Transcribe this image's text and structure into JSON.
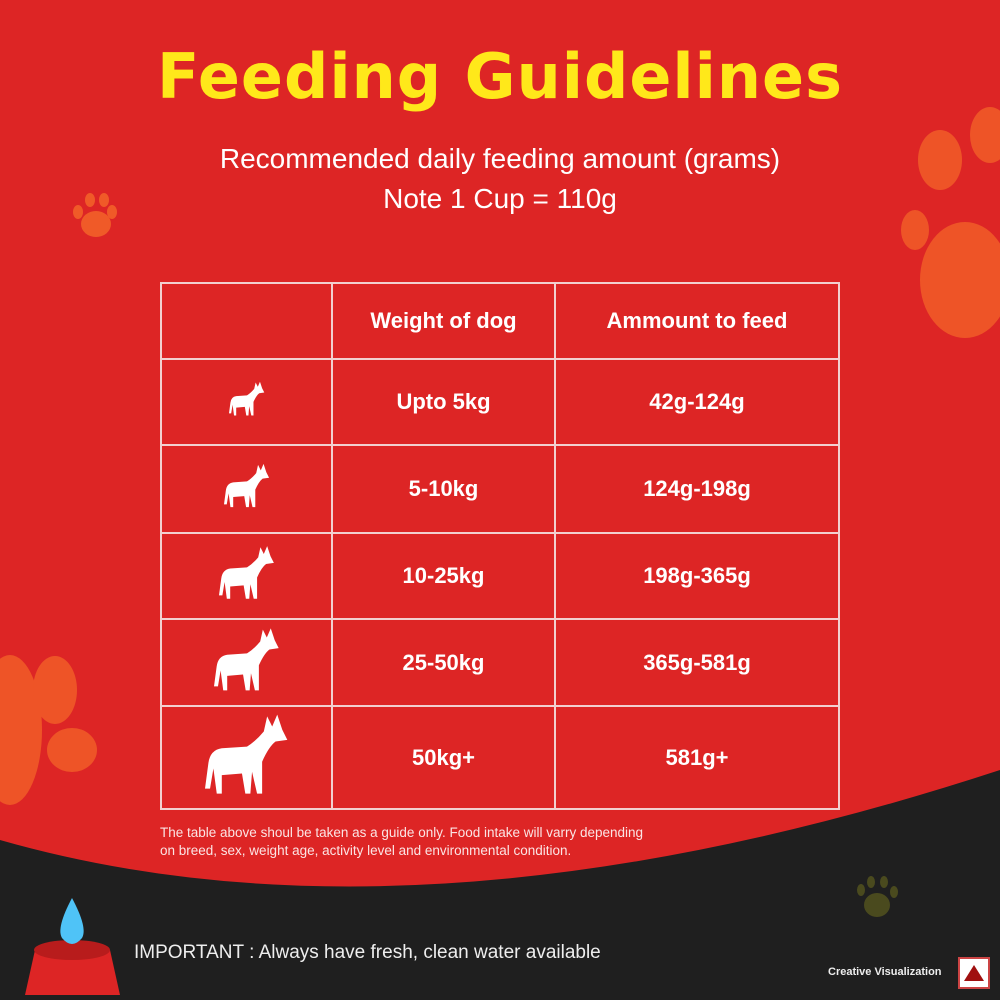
{
  "title": "Feeding Guidelines",
  "subtitle": "Recommended daily feeding amount (grams)",
  "note_cup": "Note 1 Cup = 110g",
  "table": {
    "headers": [
      "",
      "Weight of dog",
      "Ammount to feed"
    ],
    "rows": [
      {
        "icon": "dog-icon",
        "weight": "Upto 5kg",
        "amount": "42g-124g"
      },
      {
        "icon": "dog-icon",
        "weight": "5-10kg",
        "amount": "124g-198g"
      },
      {
        "icon": "dog-icon",
        "weight": "10-25kg",
        "amount": "198g-365g"
      },
      {
        "icon": "dog-icon",
        "weight": "25-50kg",
        "amount": "365g-581g"
      },
      {
        "icon": "dog-icon",
        "weight": "50kg+",
        "amount": "581g+"
      }
    ]
  },
  "disclaimer": [
    "The table above shoul be taken as a guide only. Food intake will varry depending",
    "on breed, sex, weight age, activity level and environmental condition."
  ],
  "important": "IMPORTANT : Always have fresh, clean water available",
  "credit": "Creative Visualization",
  "colors": {
    "background": "#dd2525",
    "title": "#ffe81a",
    "dark": "#1f1f1f",
    "paw": "#f05a28",
    "water": "#4fc3f7"
  }
}
